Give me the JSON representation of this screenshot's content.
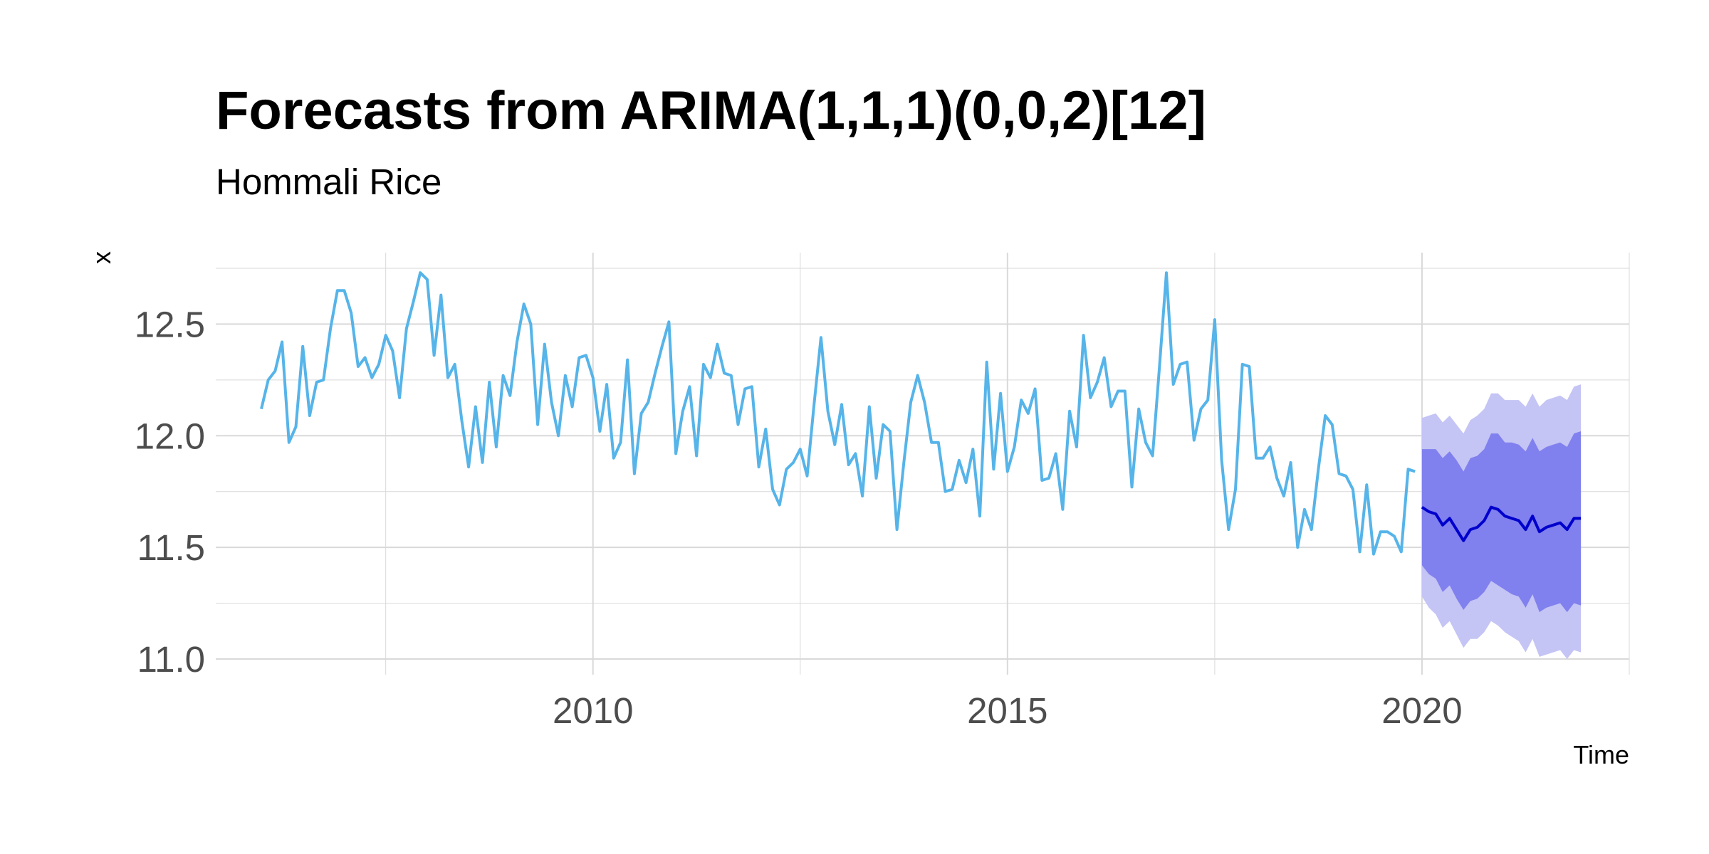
{
  "chart_data": {
    "type": "line",
    "title": "Forecasts from ARIMA(1,1,1)(0,0,2)[12]",
    "subtitle": "Hommali Rice",
    "xlabel": "Time",
    "ylabel": "x",
    "xlim": [
      2005.45,
      2022.5
    ],
    "ylim": [
      10.93,
      12.82
    ],
    "x_ticks": [
      2010,
      2015,
      2020
    ],
    "x_tick_labels": [
      "2010",
      "2015",
      "2020"
    ],
    "y_ticks": [
      11.0,
      11.5,
      12.0,
      12.5
    ],
    "y_tick_labels": [
      "11.0",
      "11.5",
      "12.0",
      "12.5"
    ],
    "grid": true,
    "colors": {
      "history": "#56B4E9",
      "forecast_mean": "#0000CC",
      "interval_80": "#8080EE",
      "interval_95": "#C4C4F5",
      "grid": "#D9D9D9",
      "text": "#000000",
      "tick_text": "#4D4D4D"
    },
    "history": {
      "start": 2006.0,
      "frequency": 12,
      "values": [
        12.12,
        12.25,
        12.29,
        12.42,
        11.97,
        12.04,
        12.4,
        12.09,
        12.24,
        12.25,
        12.48,
        12.65,
        12.65,
        12.55,
        12.31,
        12.35,
        12.26,
        12.32,
        12.45,
        12.38,
        12.17,
        12.48,
        12.6,
        12.73,
        12.7,
        12.36,
        12.63,
        12.26,
        12.32,
        12.07,
        11.86,
        12.13,
        11.88,
        12.24,
        11.95,
        12.27,
        12.18,
        12.42,
        12.59,
        12.5,
        12.05,
        12.41,
        12.15,
        12.0,
        12.27,
        12.13,
        12.35,
        12.36,
        12.26,
        12.02,
        12.23,
        11.9,
        11.97,
        12.34,
        11.83,
        12.1,
        12.15,
        12.28,
        12.4,
        12.51,
        11.92,
        12.11,
        12.22,
        11.91,
        12.32,
        12.26,
        12.41,
        12.28,
        12.27,
        12.05,
        12.21,
        12.22,
        11.86,
        12.03,
        11.76,
        11.69,
        11.85,
        11.88,
        11.94,
        11.82,
        12.14,
        12.44,
        12.11,
        11.96,
        12.14,
        11.87,
        11.92,
        11.73,
        12.13,
        11.81,
        12.05,
        12.02,
        11.58,
        11.88,
        12.15,
        12.27,
        12.15,
        11.97,
        11.97,
        11.75,
        11.76,
        11.89,
        11.79,
        11.94,
        11.64,
        12.33,
        11.85,
        12.19,
        11.84,
        11.95,
        12.16,
        12.1,
        12.21,
        11.8,
        11.81,
        11.92,
        11.67,
        12.11,
        11.95,
        12.45,
        12.17,
        12.24,
        12.35,
        12.13,
        12.2,
        12.2,
        11.77,
        12.12,
        11.97,
        11.91,
        12.31,
        12.73,
        12.23,
        12.32,
        12.33,
        11.98,
        12.12,
        12.16,
        12.52,
        11.89,
        11.58,
        11.76,
        12.32,
        12.31,
        11.9,
        11.9,
        11.95,
        11.81,
        11.73,
        11.88,
        11.5,
        11.67,
        11.58,
        11.85,
        12.09,
        12.05,
        11.83,
        11.82,
        11.76,
        11.48,
        11.78,
        11.47,
        11.57,
        11.57,
        11.55,
        11.48,
        11.85,
        11.84
      ]
    },
    "forecast": {
      "start": 2020.0,
      "frequency": 12,
      "mean": [
        11.68,
        11.66,
        11.65,
        11.6,
        11.63,
        11.58,
        11.53,
        11.58,
        11.59,
        11.62,
        11.68,
        11.67,
        11.64,
        11.63,
        11.62,
        11.58,
        11.64,
        11.57,
        11.59,
        11.6,
        11.61,
        11.58,
        11.63,
        11.63
      ],
      "lower_80": [
        11.42,
        11.38,
        11.36,
        11.3,
        11.33,
        11.27,
        11.22,
        11.26,
        11.27,
        11.3,
        11.35,
        11.33,
        11.31,
        11.29,
        11.28,
        11.23,
        11.29,
        11.21,
        11.23,
        11.24,
        11.25,
        11.21,
        11.25,
        11.24
      ],
      "upper_80": [
        11.94,
        11.94,
        11.94,
        11.9,
        11.93,
        11.89,
        11.84,
        11.9,
        11.91,
        11.94,
        12.01,
        12.01,
        11.97,
        11.97,
        11.96,
        11.93,
        11.99,
        11.93,
        11.95,
        11.96,
        11.97,
        11.95,
        12.01,
        12.02
      ],
      "lower_95": [
        11.28,
        11.23,
        11.2,
        11.14,
        11.17,
        11.11,
        11.05,
        11.09,
        11.09,
        11.12,
        11.17,
        11.15,
        11.12,
        11.1,
        11.08,
        11.03,
        11.09,
        11.01,
        11.02,
        11.03,
        11.04,
        11.0,
        11.04,
        11.03
      ],
      "upper_95": [
        12.08,
        12.09,
        12.1,
        12.06,
        12.09,
        12.05,
        12.01,
        12.07,
        12.09,
        12.12,
        12.19,
        12.19,
        12.16,
        12.16,
        12.16,
        12.13,
        12.19,
        12.13,
        12.16,
        12.17,
        12.18,
        12.16,
        12.22,
        12.23
      ]
    }
  }
}
